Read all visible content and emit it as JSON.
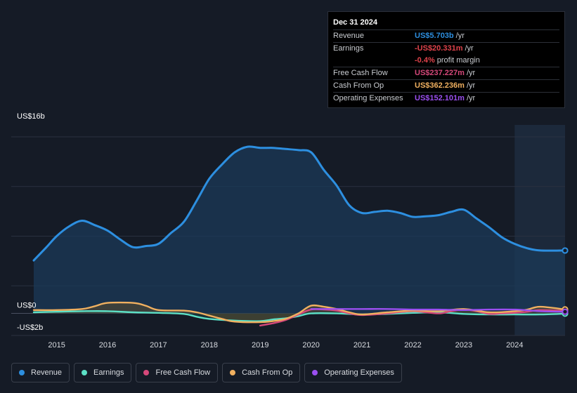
{
  "colors": {
    "revenue": "#2d8fe0",
    "earnings": "#5ce0c6",
    "free_cash_flow": "#d5487a",
    "cash_from_op": "#f0b060",
    "operating_expenses": "#9b4ff0"
  },
  "tooltip": {
    "date": "Dec 31 2024",
    "rows": [
      {
        "label": "Revenue",
        "value": "US$5.703b",
        "unit": "/yr",
        "color": "#2d8fe0"
      },
      {
        "label": "Earnings",
        "value": "-US$20.331m",
        "unit": "/yr",
        "color": "#e0434b"
      },
      {
        "label": "",
        "value": "-0.4%",
        "unit": "profit margin",
        "color": "#e0434b"
      },
      {
        "label": "Free Cash Flow",
        "value": "US$237.227m",
        "unit": "/yr",
        "color": "#d5487a"
      },
      {
        "label": "Cash From Op",
        "value": "US$362.236m",
        "unit": "/yr",
        "color": "#f0b060"
      },
      {
        "label": "Operating Expenses",
        "value": "US$152.101m",
        "unit": "/yr",
        "color": "#9b4ff0"
      }
    ]
  },
  "legend": [
    {
      "label": "Revenue",
      "color": "#2d8fe0"
    },
    {
      "label": "Earnings",
      "color": "#5ce0c6"
    },
    {
      "label": "Free Cash Flow",
      "color": "#d5487a"
    },
    {
      "label": "Cash From Op",
      "color": "#f0b060"
    },
    {
      "label": "Operating Expenses",
      "color": "#9b4ff0"
    }
  ],
  "chart_data": {
    "type": "line",
    "title": "",
    "xlabel": "",
    "ylabel": "",
    "xlim": [
      2014.55,
      2024.99
    ],
    "ylim": [
      -2,
      16
    ],
    "y_tick_labels": [
      {
        "value": 16,
        "label": "US$16b"
      },
      {
        "value": 0,
        "label": "US$0"
      },
      {
        "value": -2,
        "label": "-US$2b"
      }
    ],
    "x_ticks": [
      2015,
      2016,
      2017,
      2018,
      2019,
      2020,
      2021,
      2022,
      2023,
      2024
    ],
    "forecast_shade_start": 2024.0,
    "series": [
      {
        "name": "Revenue",
        "key": "revenue",
        "area": true,
        "points": [
          [
            2014.55,
            4.8
          ],
          [
            2014.8,
            6.0
          ],
          [
            2015.0,
            7.0
          ],
          [
            2015.25,
            7.9
          ],
          [
            2015.5,
            8.4
          ],
          [
            2015.75,
            8.0
          ],
          [
            2016.0,
            7.5
          ],
          [
            2016.25,
            6.7
          ],
          [
            2016.5,
            6.0
          ],
          [
            2016.75,
            6.1
          ],
          [
            2017.0,
            6.3
          ],
          [
            2017.25,
            7.3
          ],
          [
            2017.5,
            8.3
          ],
          [
            2017.75,
            10.2
          ],
          [
            2018.0,
            12.2
          ],
          [
            2018.25,
            13.5
          ],
          [
            2018.5,
            14.6
          ],
          [
            2018.75,
            15.1
          ],
          [
            2019.0,
            15.0
          ],
          [
            2019.25,
            15.0
          ],
          [
            2019.5,
            14.9
          ],
          [
            2019.75,
            14.8
          ],
          [
            2020.0,
            14.6
          ],
          [
            2020.25,
            13.0
          ],
          [
            2020.5,
            11.6
          ],
          [
            2020.75,
            9.8
          ],
          [
            2021.0,
            9.1
          ],
          [
            2021.25,
            9.2
          ],
          [
            2021.5,
            9.3
          ],
          [
            2021.75,
            9.1
          ],
          [
            2022.0,
            8.75
          ],
          [
            2022.25,
            8.8
          ],
          [
            2022.5,
            8.9
          ],
          [
            2022.75,
            9.2
          ],
          [
            2023.0,
            9.4
          ],
          [
            2023.25,
            8.6
          ],
          [
            2023.5,
            7.8
          ],
          [
            2023.75,
            6.9
          ],
          [
            2024.0,
            6.3
          ],
          [
            2024.25,
            5.9
          ],
          [
            2024.5,
            5.7
          ],
          [
            2024.99,
            5.7
          ]
        ]
      },
      {
        "name": "Earnings",
        "key": "earnings",
        "area": true,
        "points": [
          [
            2014.55,
            0.1
          ],
          [
            2015.0,
            0.15
          ],
          [
            2015.5,
            0.2
          ],
          [
            2016.0,
            0.2
          ],
          [
            2016.5,
            0.1
          ],
          [
            2017.0,
            0.05
          ],
          [
            2017.5,
            -0.05
          ],
          [
            2017.75,
            -0.3
          ],
          [
            2018.0,
            -0.5
          ],
          [
            2018.5,
            -0.65
          ],
          [
            2019.0,
            -0.7
          ],
          [
            2019.25,
            -0.55
          ],
          [
            2019.5,
            -0.45
          ],
          [
            2019.75,
            -0.25
          ],
          [
            2020.0,
            0.0
          ],
          [
            2020.5,
            0.0
          ],
          [
            2021.0,
            -0.1
          ],
          [
            2021.5,
            -0.05
          ],
          [
            2022.0,
            0.05
          ],
          [
            2022.5,
            0.1
          ],
          [
            2023.0,
            -0.05
          ],
          [
            2023.5,
            -0.1
          ],
          [
            2024.0,
            -0.1
          ],
          [
            2024.5,
            -0.1
          ],
          [
            2024.99,
            -0.02
          ]
        ]
      },
      {
        "name": "Free Cash Flow",
        "key": "free_cash_flow",
        "area": false,
        "points": [
          [
            2019.0,
            -1.1
          ],
          [
            2019.25,
            -0.9
          ],
          [
            2019.5,
            -0.6
          ],
          [
            2019.75,
            -0.1
          ],
          [
            2020.0,
            0.35
          ],
          [
            2020.25,
            0.35
          ],
          [
            2020.5,
            0.25
          ],
          [
            2020.75,
            0.0
          ],
          [
            2021.0,
            -0.15
          ],
          [
            2021.5,
            0.0
          ],
          [
            2022.0,
            0.2
          ],
          [
            2022.5,
            0.0
          ],
          [
            2022.75,
            0.2
          ],
          [
            2023.0,
            0.35
          ],
          [
            2023.25,
            0.2
          ],
          [
            2023.5,
            -0.05
          ],
          [
            2023.75,
            0.0
          ],
          [
            2024.0,
            0.05
          ],
          [
            2024.25,
            0.15
          ],
          [
            2024.5,
            0.3
          ],
          [
            2024.99,
            0.24
          ]
        ]
      },
      {
        "name": "Cash From Op",
        "key": "cash_from_op",
        "area": true,
        "points": [
          [
            2014.55,
            0.3
          ],
          [
            2015.0,
            0.3
          ],
          [
            2015.5,
            0.4
          ],
          [
            2015.75,
            0.65
          ],
          [
            2016.0,
            0.95
          ],
          [
            2016.5,
            0.95
          ],
          [
            2016.75,
            0.7
          ],
          [
            2017.0,
            0.3
          ],
          [
            2017.5,
            0.25
          ],
          [
            2017.75,
            0.1
          ],
          [
            2018.0,
            -0.2
          ],
          [
            2018.25,
            -0.5
          ],
          [
            2018.5,
            -0.75
          ],
          [
            2019.0,
            -0.8
          ],
          [
            2019.25,
            -0.7
          ],
          [
            2019.5,
            -0.5
          ],
          [
            2019.75,
            0.0
          ],
          [
            2020.0,
            0.7
          ],
          [
            2020.25,
            0.6
          ],
          [
            2020.5,
            0.4
          ],
          [
            2020.75,
            0.1
          ],
          [
            2021.0,
            -0.1
          ],
          [
            2021.5,
            0.1
          ],
          [
            2022.0,
            0.25
          ],
          [
            2022.5,
            0.2
          ],
          [
            2023.0,
            0.4
          ],
          [
            2023.5,
            0.1
          ],
          [
            2024.0,
            0.2
          ],
          [
            2024.25,
            0.35
          ],
          [
            2024.5,
            0.6
          ],
          [
            2024.99,
            0.36
          ]
        ]
      },
      {
        "name": "Operating Expenses",
        "key": "operating_expenses",
        "area": false,
        "points": [
          [
            2020.0,
            0.4
          ],
          [
            2020.5,
            0.4
          ],
          [
            2021.0,
            0.4
          ],
          [
            2021.5,
            0.4
          ],
          [
            2022.0,
            0.35
          ],
          [
            2022.5,
            0.35
          ],
          [
            2023.0,
            0.3
          ],
          [
            2023.5,
            0.35
          ],
          [
            2024.0,
            0.35
          ],
          [
            2024.5,
            0.2
          ],
          [
            2024.99,
            0.15
          ]
        ]
      }
    ]
  }
}
